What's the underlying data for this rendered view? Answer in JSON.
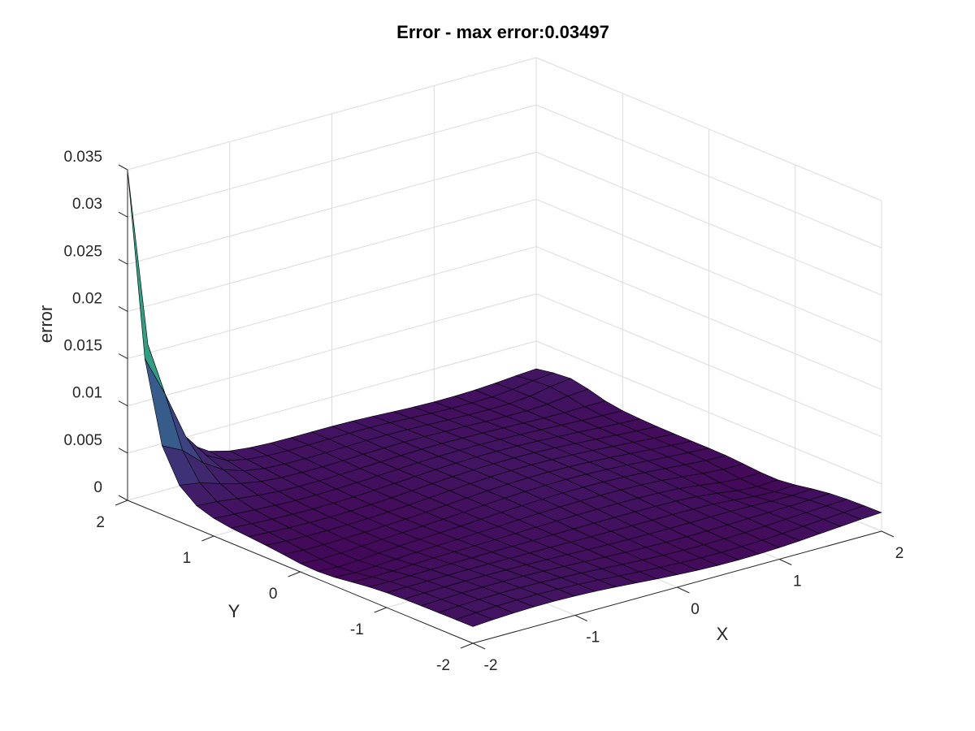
{
  "chart_data": {
    "type": "surface",
    "title": "Error - max error:0.03497",
    "xlabel": "X",
    "ylabel": "Y",
    "zlabel": "error",
    "xlim": [
      -2,
      2
    ],
    "ylim": [
      -2,
      2
    ],
    "zlim": [
      0,
      0.035
    ],
    "xticks": [
      "-2",
      "-1",
      "0",
      "1",
      "2"
    ],
    "yticks": [
      "-2",
      "-1",
      "0",
      "1",
      "2"
    ],
    "zticks": [
      "0",
      "0.005",
      "0.01",
      "0.015",
      "0.02",
      "0.025",
      "0.03",
      "0.035"
    ],
    "grid": true,
    "colormap": "viridis",
    "max_error": 0.03497,
    "peak": {
      "x": -2,
      "y": 2,
      "z": 0.03497
    },
    "grid_n": 21,
    "colors": {
      "grid": "#dcdcdc",
      "axis": "#262626",
      "edge": "#000000"
    }
  }
}
